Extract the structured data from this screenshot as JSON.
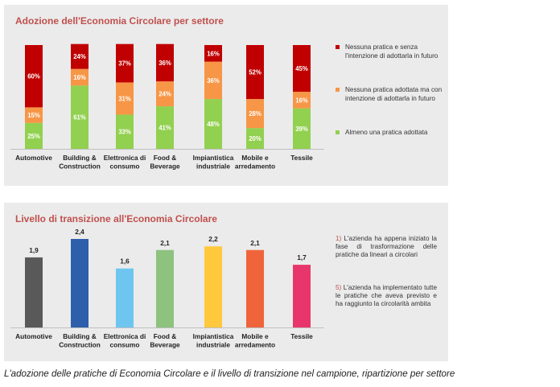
{
  "chart_data": [
    {
      "type": "bar",
      "stacked": true,
      "title": "Adozione dell'Economia Circolare per settore",
      "categories": [
        "Automotive",
        "Building & Construction",
        "Elettronica di consumo",
        "Food & Beverage",
        "Impiantistica industriale",
        "Mobile e arredamento",
        "Tessile"
      ],
      "category_lines": [
        [
          "Automotive"
        ],
        [
          "Building &",
          "Construction"
        ],
        [
          "Elettronica di",
          "consumo"
        ],
        [
          "Food &",
          "Beverage"
        ],
        [
          "Impiantistica",
          "industriale"
        ],
        [
          "Mobile e",
          "arredamento"
        ],
        [
          "Tessile"
        ]
      ],
      "series": [
        {
          "name": "Almeno una pratica adottata",
          "color": "#92d050",
          "values": [
            25,
            61,
            33,
            41,
            48,
            20,
            39
          ]
        },
        {
          "name": "Nessuna pratica adottata ma con intenzione di adottarla in futuro",
          "color": "#f79646",
          "values": [
            15,
            16,
            31,
            24,
            36,
            28,
            16
          ]
        },
        {
          "name": "Nessuna pratica e senza l'intenzione di adottarla in futuro",
          "color": "#c00000",
          "values": [
            60,
            24,
            37,
            36,
            16,
            52,
            45
          ]
        }
      ],
      "value_suffix": "%",
      "legend": [
        {
          "label": "Nessuna pratica e senza l'intenzione di adottarla in futuro",
          "color": "#c00000"
        },
        {
          "label": "Nessuna pratica adottata ma con intenzione di adottarla in futuro",
          "color": "#f79646"
        },
        {
          "label": "Almeno una pratica adottata",
          "color": "#92d050"
        }
      ],
      "legend_position": "right"
    },
    {
      "type": "bar",
      "title": "Livello di transizione all'Economia Circolare",
      "categories": [
        "Automotive",
        "Building & Construction",
        "Elettronica di consumo",
        "Food & Beverage",
        "Impiantistica industriale",
        "Mobile e arredamento",
        "Tessile"
      ],
      "category_lines": [
        [
          "Automotive"
        ],
        [
          "Building &",
          "Construction"
        ],
        [
          "Elettronica di",
          "consumo"
        ],
        [
          "Food &",
          "Beverage"
        ],
        [
          "Impiantistica",
          "industriale"
        ],
        [
          "Mobile e",
          "arredamento"
        ],
        [
          "Tessile"
        ]
      ],
      "values": [
        1.9,
        2.4,
        1.6,
        2.1,
        2.2,
        2.1,
        1.7
      ],
      "value_labels": [
        "1,9",
        "2,4",
        "1,6",
        "2,1",
        "2,2",
        "2,1",
        "1,7"
      ],
      "colors": [
        "#595959",
        "#2e5faa",
        "#6ec6f0",
        "#8dc27f",
        "#ffc83d",
        "#f0643c",
        "#e8366c"
      ],
      "ylim": [
        0,
        2.4
      ],
      "notes": [
        {
          "num": "1)",
          "text": "L'azienda ha appena iniziato la fase di trasformazione delle pratiche da lineari a circolari"
        },
        {
          "num": "5)",
          "text": "L'azienda ha implementato tutte le pratiche che aveva previsto e ha raggiunto la circolarità ambita"
        }
      ]
    }
  ],
  "caption": "L'adozione delle pratiche di Economia Circolare e il livello di transizione nel campione, ripartizione per settore"
}
